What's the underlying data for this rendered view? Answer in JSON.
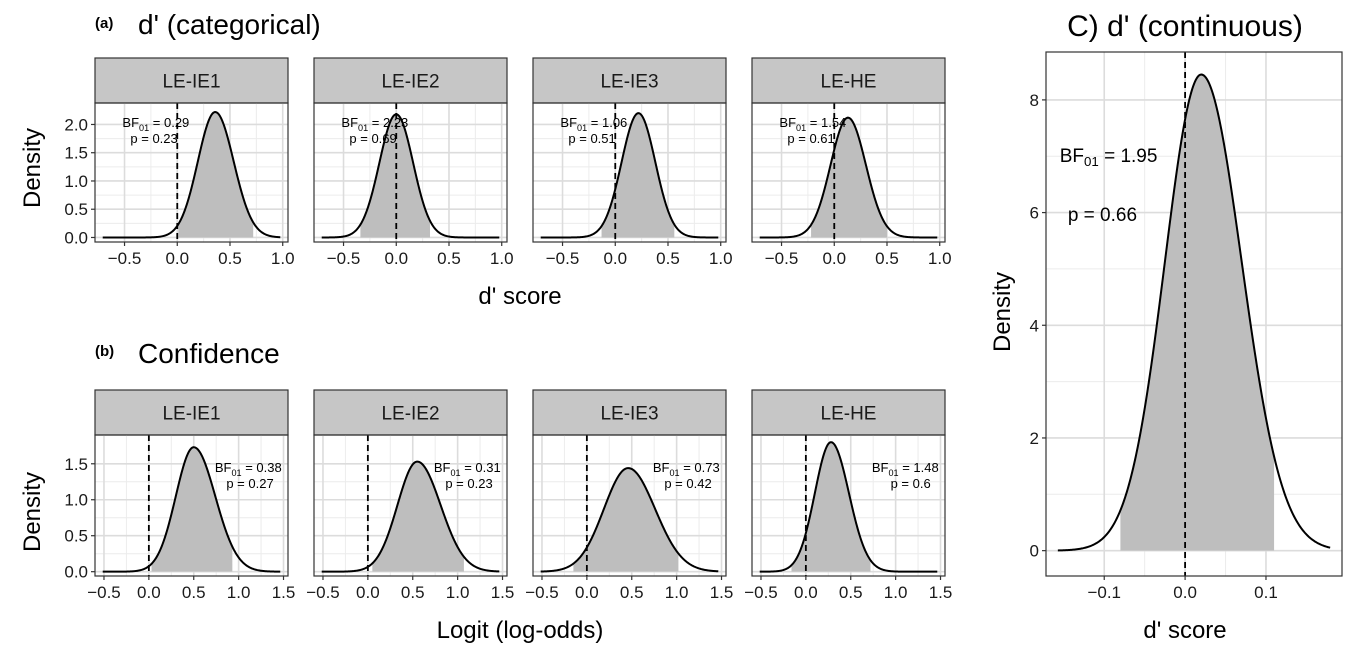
{
  "chart_data": [
    {
      "type": "area",
      "panel": "a",
      "panel_tag": "(a)",
      "title": "d' (categorical)",
      "xlabel": "d' score",
      "ylabel": "Density",
      "xlim": [
        -0.78,
        1.05
      ],
      "ylim": [
        -0.08,
        2.38
      ],
      "x_ticks": [
        -0.5,
        0.0,
        0.5,
        1.0
      ],
      "x_tick_labels": [
        "−0.5",
        "0.0",
        "0.5",
        "1.0"
      ],
      "y_ticks": [
        0.0,
        0.5,
        1.0,
        1.5,
        2.0
      ],
      "y_tick_labels": [
        "0.0",
        "0.5",
        "1.0",
        "1.5",
        "2.0"
      ],
      "grid": true,
      "facets": [
        {
          "label": "LE-IE1",
          "center": 0.36,
          "peak": 2.22,
          "sd_left": 0.165,
          "sd_right": 0.175,
          "ci": [
            0.01,
            0.72
          ],
          "bf_label": "BF",
          "bf_sub": "01",
          "bf_value": " = 0.29",
          "p_text": "p = 0.23",
          "annot_x": -0.52,
          "annot_anchor": "start"
        },
        {
          "label": "LE-IE2",
          "center": 0.0,
          "peak": 2.18,
          "sd_left": 0.16,
          "sd_right": 0.16,
          "ci": [
            -0.34,
            0.32
          ],
          "bf_label": "BF",
          "bf_sub": "01",
          "bf_value": " = 2.23",
          "p_text": "p = 0.69",
          "annot_x": -0.52,
          "annot_anchor": "start"
        },
        {
          "label": "LE-IE3",
          "center": 0.22,
          "peak": 2.2,
          "sd_left": 0.16,
          "sd_right": 0.16,
          "ci": [
            -0.13,
            0.56
          ],
          "bf_label": "BF",
          "bf_sub": "01",
          "bf_value": " = 1.06",
          "p_text": "p = 0.51",
          "annot_x": -0.52,
          "annot_anchor": "start"
        },
        {
          "label": "LE-HE",
          "center": 0.13,
          "peak": 2.12,
          "sd_left": 0.165,
          "sd_right": 0.17,
          "ci": [
            -0.22,
            0.5
          ],
          "bf_label": "BF",
          "bf_sub": "01",
          "bf_value": " = 1.54",
          "p_text": "p = 0.61",
          "annot_x": -0.52,
          "annot_anchor": "start"
        }
      ]
    },
    {
      "type": "area",
      "panel": "b",
      "panel_tag": "(b)",
      "title": "Confidence",
      "xlabel": "Logit (log-odds)",
      "ylabel": "Density",
      "xlim": [
        -0.6,
        1.55
      ],
      "ylim": [
        -0.06,
        1.9
      ],
      "x_ticks": [
        -0.5,
        0.0,
        0.5,
        1.0,
        1.5
      ],
      "x_tick_labels": [
        "−0.5",
        "0.0",
        "0.5",
        "1.0",
        "1.5"
      ],
      "y_ticks": [
        0.0,
        0.5,
        1.0,
        1.5
      ],
      "y_tick_labels": [
        "0.0",
        "0.5",
        "1.0",
        "1.5"
      ],
      "grid": true,
      "facets": [
        {
          "label": "LE-IE1",
          "center": 0.5,
          "peak": 1.73,
          "sd_left": 0.2,
          "sd_right": 0.24,
          "ci": [
            0.03,
            0.93
          ],
          "bf_label": "BF",
          "bf_sub": "01",
          "bf_value": " = 0.38",
          "p_text": "p = 0.27",
          "annot_x": 1.48,
          "annot_anchor": "end"
        },
        {
          "label": "LE-IE2",
          "center": 0.55,
          "peak": 1.53,
          "sd_left": 0.22,
          "sd_right": 0.26,
          "ci": [
            0.05,
            1.07
          ],
          "bf_label": "BF",
          "bf_sub": "01",
          "bf_value": " = 0.31",
          "p_text": "p = 0.23",
          "annot_x": 1.48,
          "annot_anchor": "end"
        },
        {
          "label": "LE-IE3",
          "center": 0.46,
          "peak": 1.44,
          "sd_left": 0.27,
          "sd_right": 0.3,
          "ci": [
            -0.15,
            1.02
          ],
          "bf_label": "BF",
          "bf_sub": "01",
          "bf_value": " = 0.73",
          "p_text": "p = 0.42",
          "annot_x": 1.48,
          "annot_anchor": "end"
        },
        {
          "label": "LE-HE",
          "center": 0.28,
          "peak": 1.8,
          "sd_left": 0.18,
          "sd_right": 0.2,
          "ci": [
            -0.16,
            0.72
          ],
          "bf_label": "BF",
          "bf_sub": "01",
          "bf_value": " = 1.48",
          "p_text": "p = 0.6",
          "annot_x": 1.48,
          "annot_anchor": "end"
        }
      ]
    },
    {
      "type": "area",
      "panel": "C",
      "title": "C) d' (continuous)",
      "xlabel": "d' score",
      "ylabel": "Density",
      "xlim": [
        -0.172,
        0.194
      ],
      "ylim": [
        -0.45,
        8.85
      ],
      "x_ticks": [
        -0.1,
        0.0,
        0.1
      ],
      "x_tick_labels": [
        "−0.1",
        "0.0",
        "0.1"
      ],
      "y_ticks": [
        0,
        2,
        4,
        6,
        8
      ],
      "y_tick_labels": [
        "0",
        "2",
        "4",
        "6",
        "8"
      ],
      "grid": true,
      "center": 0.02,
      "peak": 8.45,
      "sd_left": 0.045,
      "sd_right": 0.05,
      "ci": [
        -0.08,
        0.11
      ],
      "bf_label": "BF",
      "bf_sub": "01",
      "bf_value": " = 1.95",
      "p_text": "p = 0.66"
    }
  ]
}
